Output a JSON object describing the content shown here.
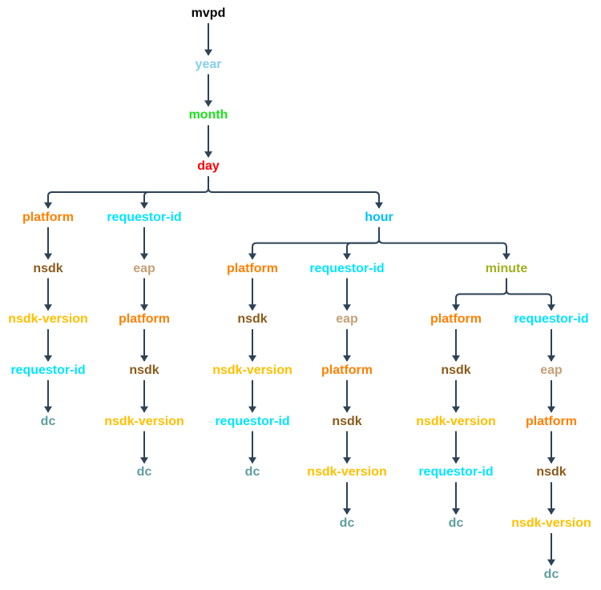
{
  "diagram": {
    "edge_color": "#2c4257",
    "nodes": [
      {
        "id": "mvpd",
        "label": "mvpd",
        "color": "#000000",
        "parent": null
      },
      {
        "id": "year",
        "label": "year",
        "color": "#87ceeb",
        "parent": "mvpd"
      },
      {
        "id": "month",
        "label": "month",
        "color": "#1ee01e",
        "parent": "year"
      },
      {
        "id": "day",
        "label": "day",
        "color": "#ff0000",
        "parent": "month"
      },
      {
        "id": "a1",
        "label": "platform",
        "color": "#ff8000",
        "parent": "day"
      },
      {
        "id": "a2",
        "label": "nsdk",
        "color": "#8b5a1b",
        "parent": "a1"
      },
      {
        "id": "a3",
        "label": "nsdk-version",
        "color": "#ffc000",
        "parent": "a2"
      },
      {
        "id": "a4",
        "label": "requestor-id",
        "color": "#00e5ff",
        "parent": "a3"
      },
      {
        "id": "a5",
        "label": "dc",
        "color": "#5f9ea0",
        "parent": "a4"
      },
      {
        "id": "b1",
        "label": "requestor-id",
        "color": "#00e5ff",
        "parent": "day"
      },
      {
        "id": "b2",
        "label": "eap",
        "color": "#c4a077",
        "parent": "b1"
      },
      {
        "id": "b3",
        "label": "platform",
        "color": "#ff8000",
        "parent": "b2"
      },
      {
        "id": "b4",
        "label": "nsdk",
        "color": "#8b5a1b",
        "parent": "b3"
      },
      {
        "id": "b5",
        "label": "nsdk-version",
        "color": "#ffc000",
        "parent": "b4"
      },
      {
        "id": "b6",
        "label": "dc",
        "color": "#5f9ea0",
        "parent": "b5"
      },
      {
        "id": "hour",
        "label": "hour",
        "color": "#00bfff",
        "parent": "day"
      },
      {
        "id": "c1",
        "label": "platform",
        "color": "#ff8000",
        "parent": "hour"
      },
      {
        "id": "c2",
        "label": "nsdk",
        "color": "#8b5a1b",
        "parent": "c1"
      },
      {
        "id": "c3",
        "label": "nsdk-version",
        "color": "#ffc000",
        "parent": "c2"
      },
      {
        "id": "c4",
        "label": "requestor-id",
        "color": "#00e5ff",
        "parent": "c3"
      },
      {
        "id": "c5",
        "label": "dc",
        "color": "#5f9ea0",
        "parent": "c4"
      },
      {
        "id": "d1",
        "label": "requestor-id",
        "color": "#00e5ff",
        "parent": "hour"
      },
      {
        "id": "d2",
        "label": "eap",
        "color": "#c4a077",
        "parent": "d1"
      },
      {
        "id": "d3",
        "label": "platform",
        "color": "#ff8000",
        "parent": "d2"
      },
      {
        "id": "d4",
        "label": "nsdk",
        "color": "#8b5a1b",
        "parent": "d3"
      },
      {
        "id": "d5",
        "label": "nsdk-version",
        "color": "#ffc000",
        "parent": "d4"
      },
      {
        "id": "d6",
        "label": "dc",
        "color": "#5f9ea0",
        "parent": "d5"
      },
      {
        "id": "minute",
        "label": "minute",
        "color": "#a0b020",
        "parent": "hour"
      },
      {
        "id": "e1",
        "label": "platform",
        "color": "#ff8000",
        "parent": "minute"
      },
      {
        "id": "e2",
        "label": "nsdk",
        "color": "#8b5a1b",
        "parent": "e1"
      },
      {
        "id": "e3",
        "label": "nsdk-version",
        "color": "#ffc000",
        "parent": "e2"
      },
      {
        "id": "e4",
        "label": "requestor-id",
        "color": "#00e5ff",
        "parent": "e3"
      },
      {
        "id": "e5",
        "label": "dc",
        "color": "#5f9ea0",
        "parent": "e4"
      },
      {
        "id": "f1",
        "label": "requestor-id",
        "color": "#00e5ff",
        "parent": "minute"
      },
      {
        "id": "f2",
        "label": "eap",
        "color": "#c4a077",
        "parent": "f1"
      },
      {
        "id": "f3",
        "label": "platform",
        "color": "#ff8000",
        "parent": "f2"
      },
      {
        "id": "f4",
        "label": "nsdk",
        "color": "#8b5a1b",
        "parent": "f3"
      },
      {
        "id": "f5",
        "label": "nsdk-version",
        "color": "#ffc000",
        "parent": "f4"
      },
      {
        "id": "f6",
        "label": "dc",
        "color": "#5f9ea0",
        "parent": "f5"
      }
    ]
  }
}
